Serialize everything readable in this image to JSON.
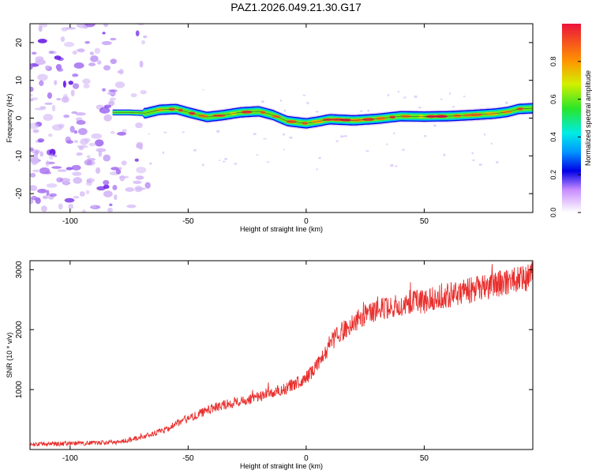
{
  "title": "PAZ1.2026.049.21.30.G17",
  "chart_data": [
    {
      "type": "heatmap",
      "xlabel": "Height of straight line (km)",
      "ylabel": "Frequency (Hz)",
      "xlim": [
        -117,
        96
      ],
      "ylim": [
        -25,
        25
      ],
      "xticks": [
        -100,
        -50,
        0,
        50
      ],
      "yticks": [
        -20,
        -10,
        0,
        10,
        20
      ],
      "ridge_start_km": -82,
      "noise_region_km": [
        -117,
        -67
      ],
      "ridge": {
        "x": [
          -82,
          -75,
          -68,
          -62,
          -55,
          -48,
          -42,
          -35,
          -28,
          -20,
          -14,
          -8,
          0,
          5,
          10,
          20,
          30,
          40,
          50,
          60,
          70,
          80,
          85,
          90,
          96
        ],
        "y": [
          1.5,
          1.5,
          1.3,
          2.2,
          2.4,
          1.2,
          0.3,
          0.8,
          1.5,
          1.8,
          0.8,
          -0.8,
          -1.4,
          -0.9,
          -0.3,
          -0.6,
          -0.2,
          0.5,
          0.4,
          0.5,
          0.8,
          1.2,
          1.6,
          2.4,
          2.6
        ]
      },
      "colorbar": {
        "label": "Normalized spectral amplitude",
        "range": [
          0.0,
          1.0
        ],
        "ticks": [
          0.0,
          0.2,
          0.4,
          0.6,
          0.8
        ]
      }
    },
    {
      "type": "line",
      "xlabel": "Height of straight line (km)",
      "ylabel": "SNR (10 * v/v)",
      "xlim": [
        -117,
        96
      ],
      "ylim": [
        0,
        3150
      ],
      "xticks": [
        -100,
        -50,
        0,
        50
      ],
      "yticks": [
        1000,
        2000,
        3000
      ],
      "line_color": "#e8302e",
      "series": [
        {
          "name": "SNR",
          "x": [
            -117,
            -110,
            -100,
            -90,
            -80,
            -70,
            -65,
            -60,
            -55,
            -50,
            -45,
            -40,
            -35,
            -30,
            -25,
            -20,
            -15,
            -10,
            -5,
            0,
            5,
            8,
            10,
            15,
            20,
            25,
            30,
            35,
            40,
            45,
            50,
            55,
            60,
            65,
            70,
            75,
            80,
            85,
            90,
            96
          ],
          "values": [
            80,
            90,
            100,
            110,
            120,
            200,
            260,
            320,
            440,
            520,
            600,
            680,
            740,
            790,
            840,
            880,
            940,
            1000,
            1090,
            1200,
            1420,
            1600,
            1780,
            1960,
            2120,
            2240,
            2320,
            2380,
            2420,
            2450,
            2470,
            2520,
            2570,
            2620,
            2660,
            2700,
            2760,
            2800,
            2840,
            2880
          ]
        }
      ]
    }
  ]
}
